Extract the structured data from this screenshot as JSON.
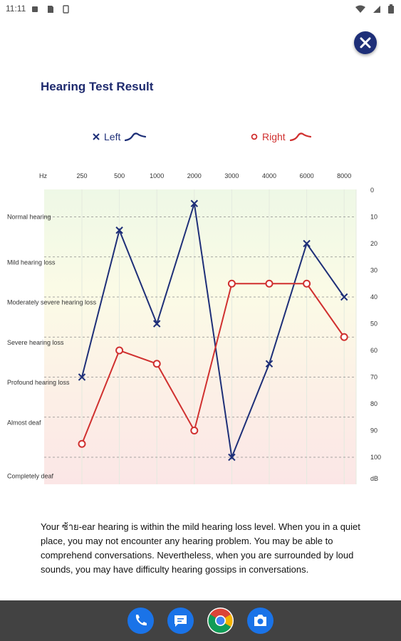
{
  "status_bar": {
    "time": "11:11",
    "left_icons": [
      "square-notification-icon",
      "sd-card-icon",
      "sim-icon"
    ],
    "right_icons": [
      "wifi-icon",
      "signal-icon",
      "battery-icon"
    ]
  },
  "close_button": {
    "icon": "close-icon"
  },
  "page": {
    "title": "Hearing Test Result"
  },
  "legend": {
    "left": {
      "label": "Left",
      "marker": "x",
      "color": "#1e2f78"
    },
    "right": {
      "label": "Right",
      "marker": "o",
      "color": "#d0302f"
    }
  },
  "chart_data": {
    "type": "line",
    "x_unit_label": "Hz",
    "categories": [
      "250",
      "500",
      "1000",
      "2000",
      "3000",
      "4000",
      "6000",
      "8000"
    ],
    "y_unit_label": "dB",
    "y_ticks": [
      "0",
      "10",
      "20",
      "30",
      "40",
      "50",
      "60",
      "70",
      "80",
      "90",
      "100"
    ],
    "ylim": [
      0,
      110
    ],
    "y_inverted": true,
    "hearing_levels": [
      {
        "label": "Normal hearing",
        "db": 10
      },
      {
        "label": "Mild hearing loss",
        "db": 27
      },
      {
        "label": "Moderately severe hearing loss",
        "db": 42
      },
      {
        "label": "Severe hearing loss",
        "db": 57
      },
      {
        "label": "Profound hearing loss",
        "db": 72
      },
      {
        "label": "Almost deaf",
        "db": 87
      },
      {
        "label": "Completely deaf",
        "db": 107
      }
    ],
    "series": [
      {
        "name": "Left",
        "marker": "x",
        "color": "#1e2f78",
        "values": [
          70,
          15,
          50,
          5,
          100,
          65,
          20,
          40
        ]
      },
      {
        "name": "Right",
        "marker": "o",
        "color": "#d0302f",
        "values": [
          95,
          60,
          65,
          90,
          35,
          35,
          35,
          55
        ]
      }
    ]
  },
  "description": "Your ซ้าย-ear hearing is within the mild hearing loss level. When you in a quiet place, you may not encounter any hearing problem. You may be able to comprehend conversations. Nevertheless, when you are surrounded by loud sounds, you may have difficulty hearing gossips in conversations.",
  "dock": {
    "apps": [
      {
        "name": "phone",
        "color": "#1a73e8"
      },
      {
        "name": "messages",
        "color": "#1a73e8"
      },
      {
        "name": "chrome",
        "color": "#ffffff"
      },
      {
        "name": "camera",
        "color": "#1a73e8"
      }
    ]
  }
}
